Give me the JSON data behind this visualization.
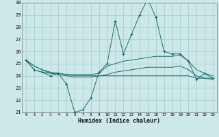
{
  "xlabel": "Humidex (Indice chaleur)",
  "x": [
    0,
    1,
    2,
    3,
    4,
    5,
    6,
    7,
    8,
    9,
    10,
    11,
    12,
    13,
    14,
    15,
    16,
    17,
    18,
    19,
    20,
    21,
    22,
    23
  ],
  "line1": [
    25.3,
    24.5,
    24.3,
    24.0,
    24.2,
    23.3,
    21.0,
    21.2,
    22.2,
    24.3,
    25.0,
    28.5,
    25.8,
    27.4,
    29.0,
    30.3,
    28.8,
    26.0,
    25.8,
    25.8,
    25.2,
    23.7,
    24.2,
    23.8
  ],
  "line2": [
    25.3,
    24.5,
    24.3,
    24.2,
    24.2,
    24.1,
    24.1,
    24.1,
    24.1,
    24.2,
    24.8,
    25.0,
    25.2,
    25.3,
    25.4,
    25.5,
    25.6,
    25.6,
    25.6,
    25.7,
    25.2,
    24.5,
    24.2,
    24.0
  ],
  "line3": [
    25.3,
    24.8,
    24.5,
    24.3,
    24.2,
    24.1,
    24.0,
    24.0,
    24.0,
    24.0,
    24.0,
    24.0,
    24.0,
    24.0,
    24.0,
    24.0,
    24.0,
    24.0,
    24.0,
    24.0,
    24.0,
    23.8,
    23.8,
    23.8
  ],
  "line4": [
    25.3,
    24.8,
    24.5,
    24.2,
    24.1,
    24.0,
    23.9,
    23.9,
    23.9,
    24.0,
    24.1,
    24.3,
    24.4,
    24.5,
    24.6,
    24.7,
    24.7,
    24.7,
    24.7,
    24.8,
    24.5,
    24.0,
    23.8,
    23.7
  ],
  "color": "#1a6b6b",
  "bg_color": "#cde8e8",
  "grid_color": "#aacece",
  "ylim": [
    21,
    30
  ],
  "yticks": [
    21,
    22,
    23,
    24,
    25,
    26,
    27,
    28,
    29,
    30
  ],
  "xticks": [
    0,
    1,
    2,
    3,
    4,
    5,
    6,
    7,
    8,
    9,
    10,
    11,
    12,
    13,
    14,
    15,
    16,
    17,
    18,
    19,
    20,
    21,
    22,
    23
  ]
}
